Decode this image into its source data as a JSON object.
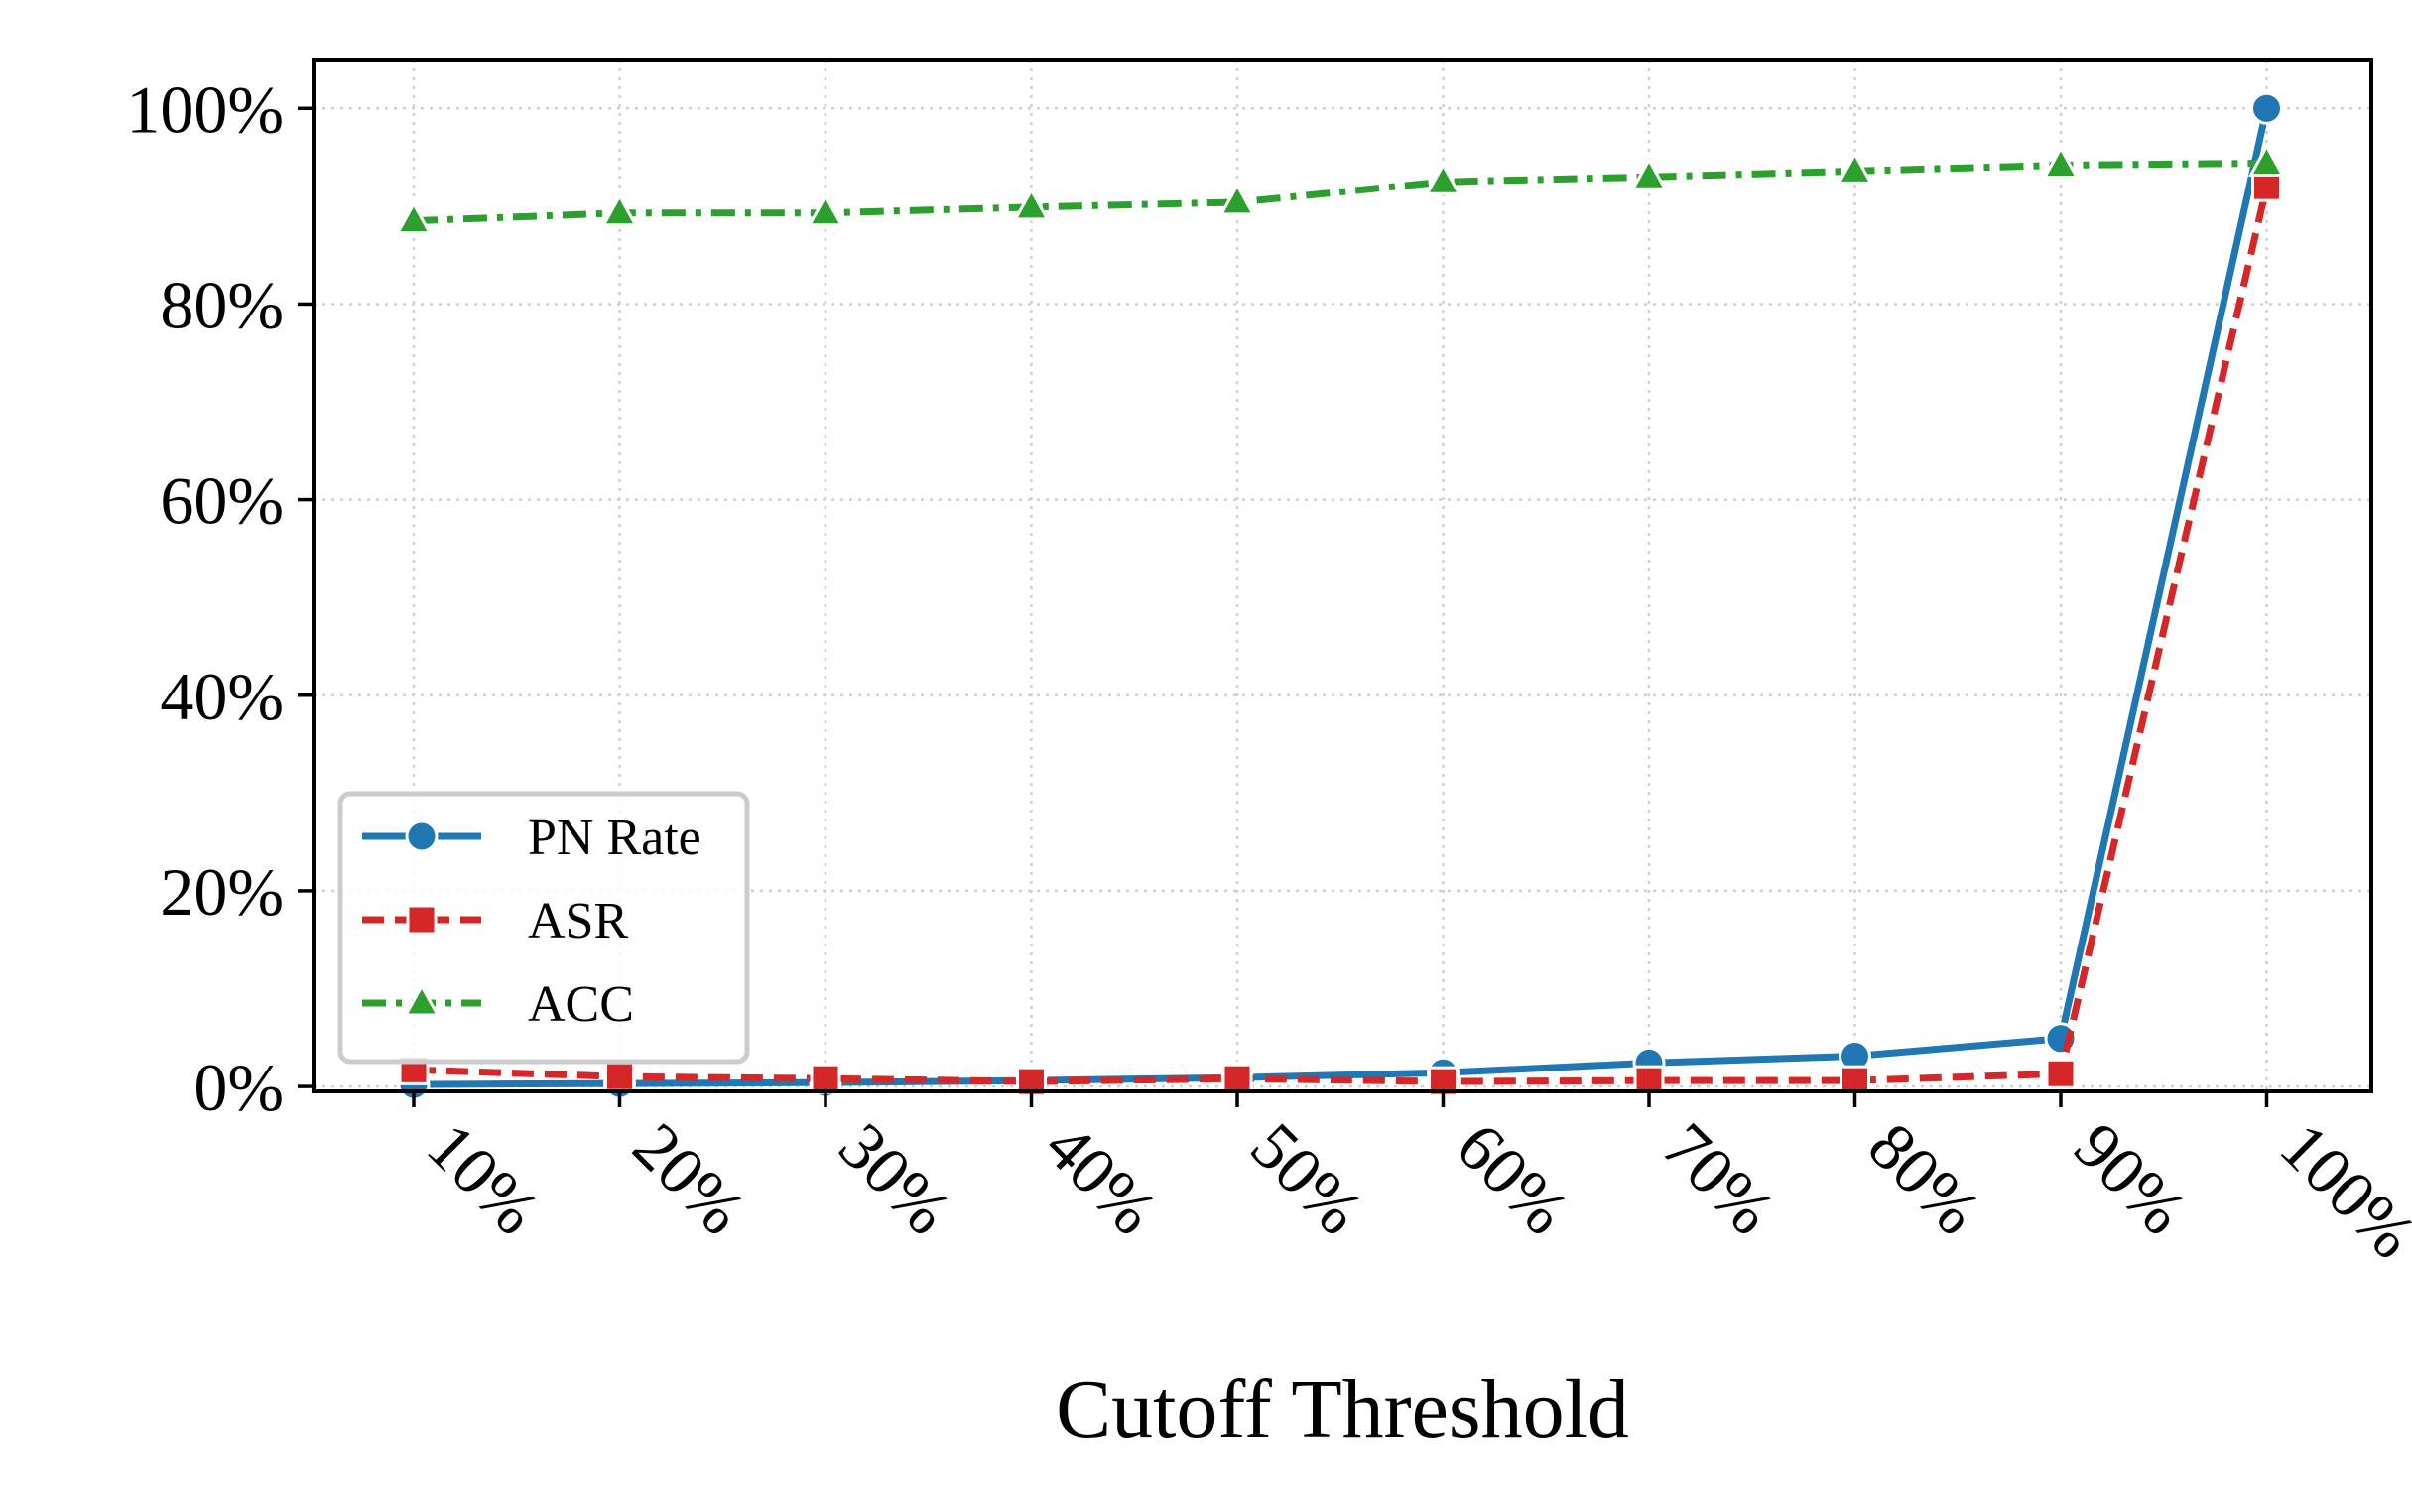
{
  "chart_data": {
    "type": "line",
    "xlabel": "Cutoff Threshold",
    "ylabel": "",
    "title": "",
    "categories": [
      "10%",
      "20%",
      "30%",
      "40%",
      "50%",
      "60%",
      "70%",
      "80%",
      "90%",
      "100%"
    ],
    "yticks": [
      0,
      20,
      40,
      60,
      80,
      100
    ],
    "ytick_labels": [
      "0%",
      "20%",
      "40%",
      "60%",
      "80%",
      "100%"
    ],
    "ylim": [
      -0.5,
      105
    ],
    "grid": true,
    "legend_position": "lower-left",
    "series": [
      {
        "name": "PN Rate",
        "color": "#1f77b4",
        "marker": "circle",
        "linestyle": "solid",
        "values": [
          0.2,
          0.3,
          0.4,
          0.6,
          0.9,
          1.4,
          2.4,
          3.1,
          4.9,
          100
        ]
      },
      {
        "name": "ASR",
        "color": "#d62728",
        "marker": "square",
        "linestyle": "dashed",
        "values": [
          1.7,
          1.0,
          0.8,
          0.5,
          0.8,
          0.5,
          0.6,
          0.6,
          1.3,
          92.0
        ]
      },
      {
        "name": "ACC",
        "color": "#2ca02c",
        "marker": "triangle",
        "linestyle": "dashdot",
        "values": [
          88.5,
          89.3,
          89.3,
          89.9,
          90.4,
          92.5,
          93.0,
          93.6,
          94.2,
          94.4
        ]
      }
    ]
  }
}
